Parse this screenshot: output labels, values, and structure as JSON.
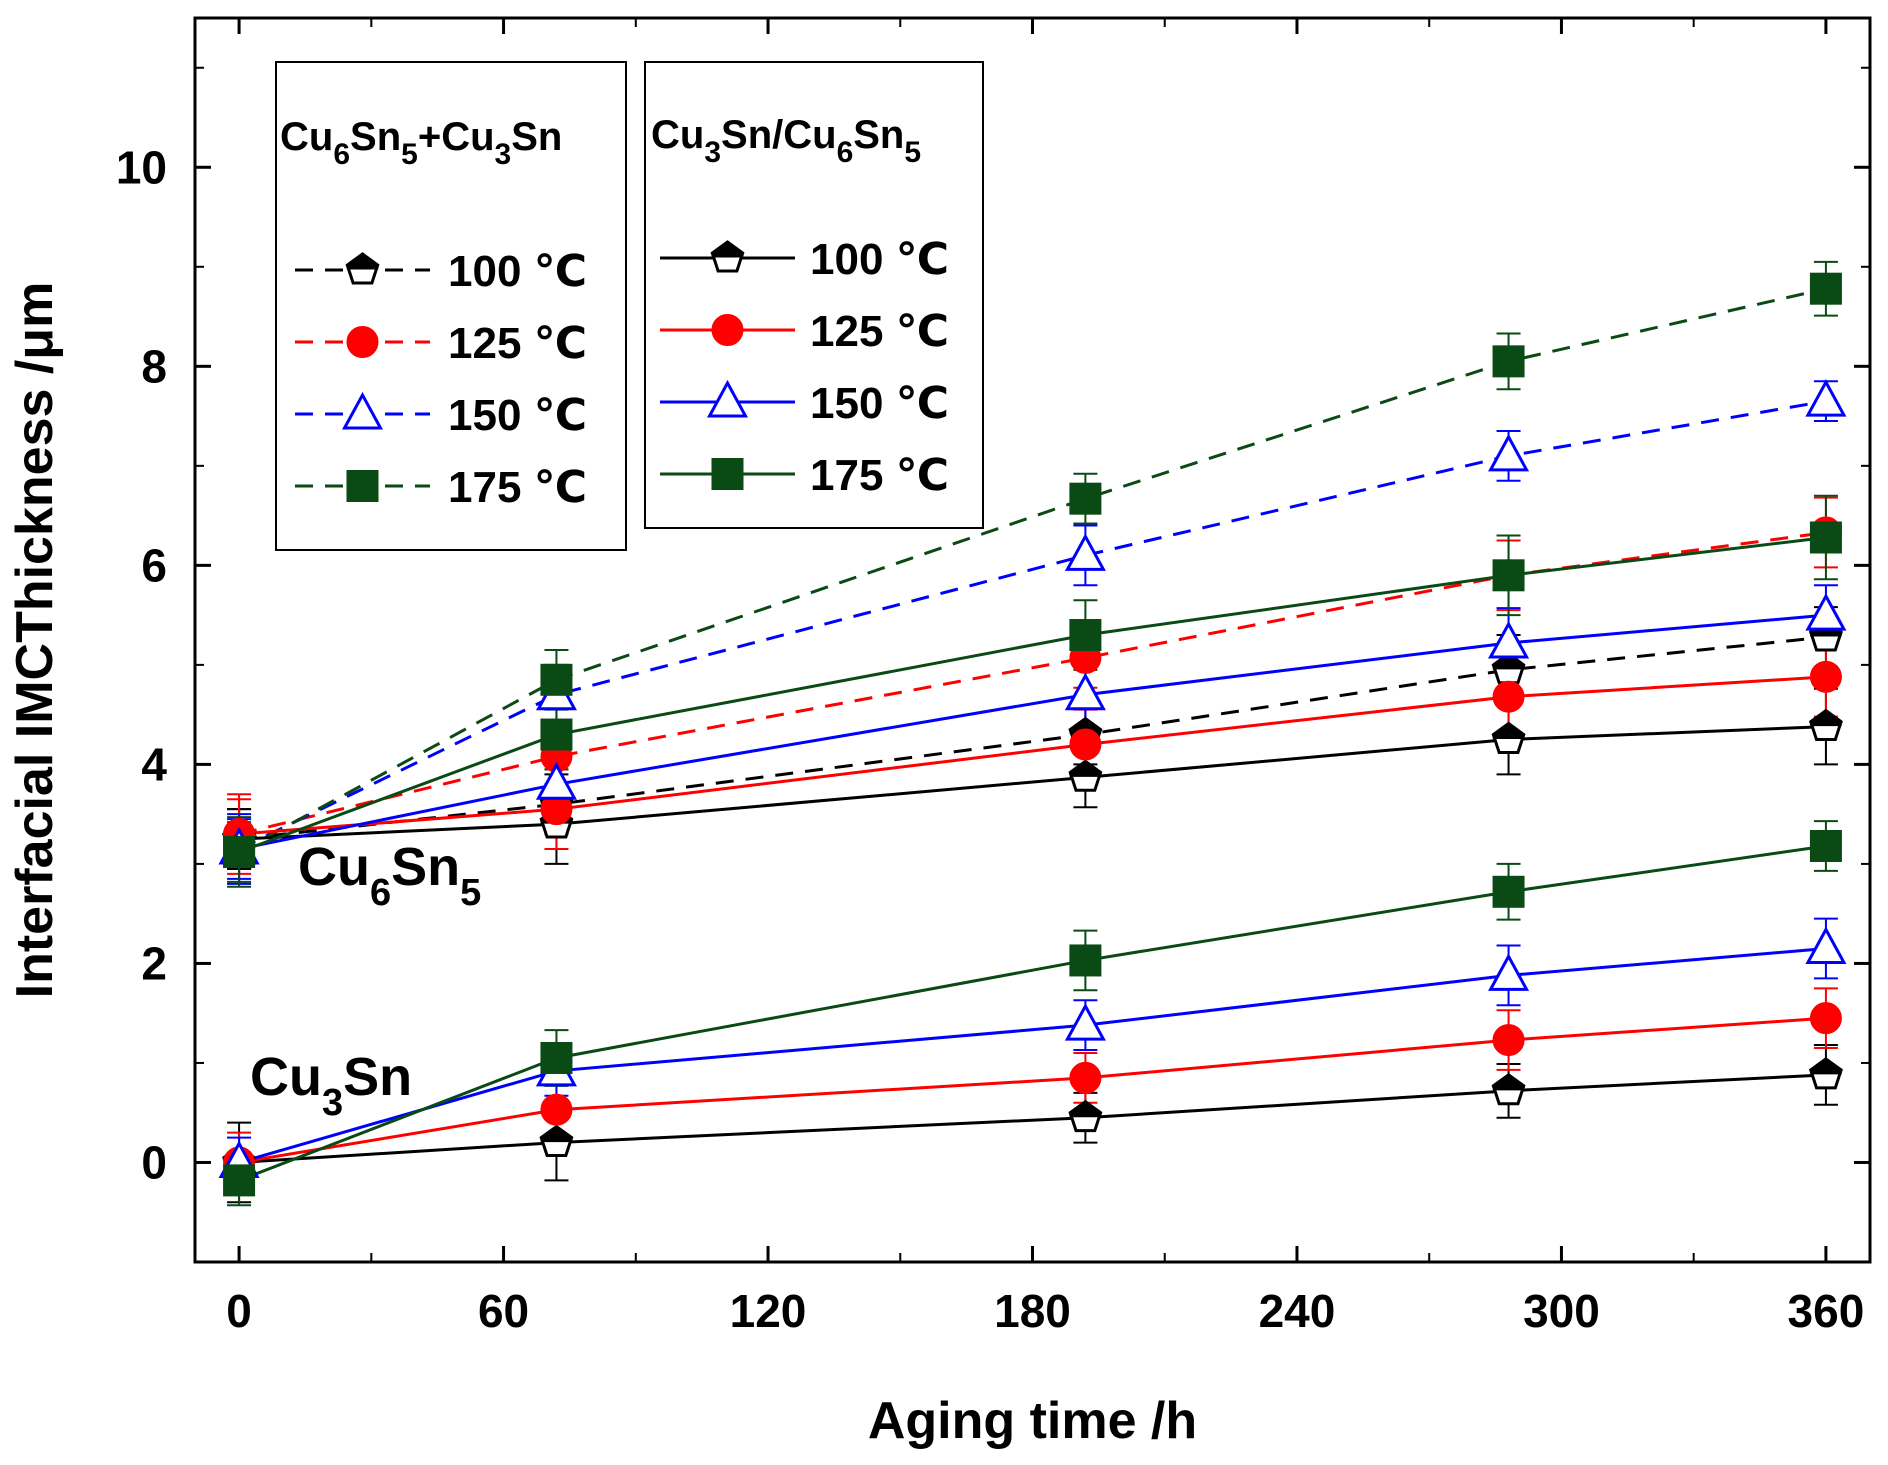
{
  "chart_data": {
    "type": "line",
    "xlabel": "Aging time /h",
    "ylabel": "Interfacial IMCThickness /μm",
    "xlim": [
      -10,
      370
    ],
    "ylim": [
      -1,
      11.5
    ],
    "xticks": [
      0,
      60,
      120,
      180,
      240,
      300,
      360
    ],
    "yticks": [
      0,
      2,
      4,
      6,
      8,
      10
    ],
    "x": [
      0,
      72,
      192,
      288,
      360
    ],
    "temperature_unit": "℃",
    "temperatures": [
      "100",
      "125",
      "150",
      "175"
    ],
    "colors": {
      "100": "#000000",
      "125": "#ff0000",
      "150": "#0000ff",
      "175": "#0a4a14"
    },
    "markers": {
      "100": "pentagon",
      "125": "circle",
      "150": "triangle",
      "175": "square"
    },
    "legends": {
      "left": {
        "main1": "Cu",
        "sub1": "6",
        "main2": "Sn",
        "sub2": "5",
        "main3": "+Cu",
        "sub3": "3",
        "main4": "Sn",
        "line_style": "dashed"
      },
      "right": {
        "main1": "Cu",
        "sub1": "3",
        "main2": "Sn/Cu",
        "sub2": "6",
        "main3": "Sn",
        "sub3": "5",
        "line_style": "solid"
      }
    },
    "annotations": {
      "cu6sn5": {
        "main1": "Cu",
        "sub1": "6",
        "main2": "Sn",
        "sub2": "5"
      },
      "cu3sn": {
        "main1": "Cu",
        "sub1": "3",
        "main2": "Sn"
      }
    },
    "series": [
      {
        "name": "Cu6Sn5+Cu3Sn 100 ℃",
        "group": "total",
        "temp": "100",
        "values": [
          3.25,
          3.6,
          4.3,
          4.95,
          5.28
        ],
        "err": [
          0.3,
          0.3,
          0.3,
          0.35,
          0.3
        ]
      },
      {
        "name": "Cu6Sn5+Cu3Sn 125 ℃",
        "group": "total",
        "temp": "125",
        "values": [
          3.3,
          4.08,
          5.07,
          5.9,
          6.33
        ],
        "err": [
          0.35,
          0.3,
          0.3,
          0.35,
          0.35
        ]
      },
      {
        "name": "Cu6Sn5+Cu3Sn 150 ℃",
        "group": "total",
        "temp": "150",
        "values": [
          3.15,
          4.7,
          6.1,
          7.1,
          7.65
        ],
        "err": [
          0.3,
          0.3,
          0.3,
          0.25,
          0.2
        ]
      },
      {
        "name": "Cu6Sn5+Cu3Sn 175 ℃",
        "group": "total",
        "temp": "175",
        "values": [
          3.12,
          4.85,
          6.67,
          8.05,
          8.78
        ],
        "err": [
          0.3,
          0.3,
          0.25,
          0.28,
          0.27
        ]
      },
      {
        "name": "Cu6Sn5 100 ℃",
        "group": "cu6sn5",
        "temp": "100",
        "values": [
          3.25,
          3.4,
          3.87,
          4.25,
          4.38
        ],
        "err": [
          0.3,
          0.4,
          0.3,
          0.35,
          0.38
        ]
      },
      {
        "name": "Cu6Sn5 125 ℃",
        "group": "cu6sn5",
        "temp": "125",
        "values": [
          3.3,
          3.55,
          4.2,
          4.68,
          4.88
        ],
        "err": [
          0.4,
          0.4,
          0.35,
          0.4,
          0.4
        ]
      },
      {
        "name": "Cu6Sn5 150 ℃",
        "group": "cu6sn5",
        "temp": "150",
        "values": [
          3.15,
          3.8,
          4.7,
          5.22,
          5.5
        ],
        "err": [
          0.35,
          0.4,
          0.35,
          0.35,
          0.3
        ]
      },
      {
        "name": "Cu6Sn5 175 ℃",
        "group": "cu6sn5",
        "temp": "175",
        "values": [
          3.12,
          4.3,
          5.3,
          5.9,
          6.28
        ],
        "err": [
          0.35,
          0.35,
          0.35,
          0.4,
          0.42
        ]
      },
      {
        "name": "Cu3Sn 100 ℃",
        "group": "cu3sn",
        "temp": "100",
        "values": [
          0.0,
          0.2,
          0.45,
          0.72,
          0.88
        ],
        "err": [
          0.4,
          0.38,
          0.25,
          0.27,
          0.3
        ]
      },
      {
        "name": "Cu3Sn 125 ℃",
        "group": "cu3sn",
        "temp": "125",
        "values": [
          0.0,
          0.53,
          0.85,
          1.23,
          1.45
        ],
        "err": [
          0.3,
          0.25,
          0.25,
          0.3,
          0.3
        ]
      },
      {
        "name": "Cu3Sn 150 ℃",
        "group": "cu3sn",
        "temp": "150",
        "values": [
          0.0,
          0.92,
          1.38,
          1.88,
          2.15
        ],
        "err": [
          0.25,
          0.25,
          0.25,
          0.3,
          0.3
        ]
      },
      {
        "name": "Cu3Sn 175 ℃",
        "group": "cu3sn",
        "temp": "175",
        "values": [
          -0.18,
          1.05,
          2.03,
          2.72,
          3.18
        ],
        "err": [
          0.25,
          0.28,
          0.3,
          0.28,
          0.25
        ]
      }
    ]
  }
}
